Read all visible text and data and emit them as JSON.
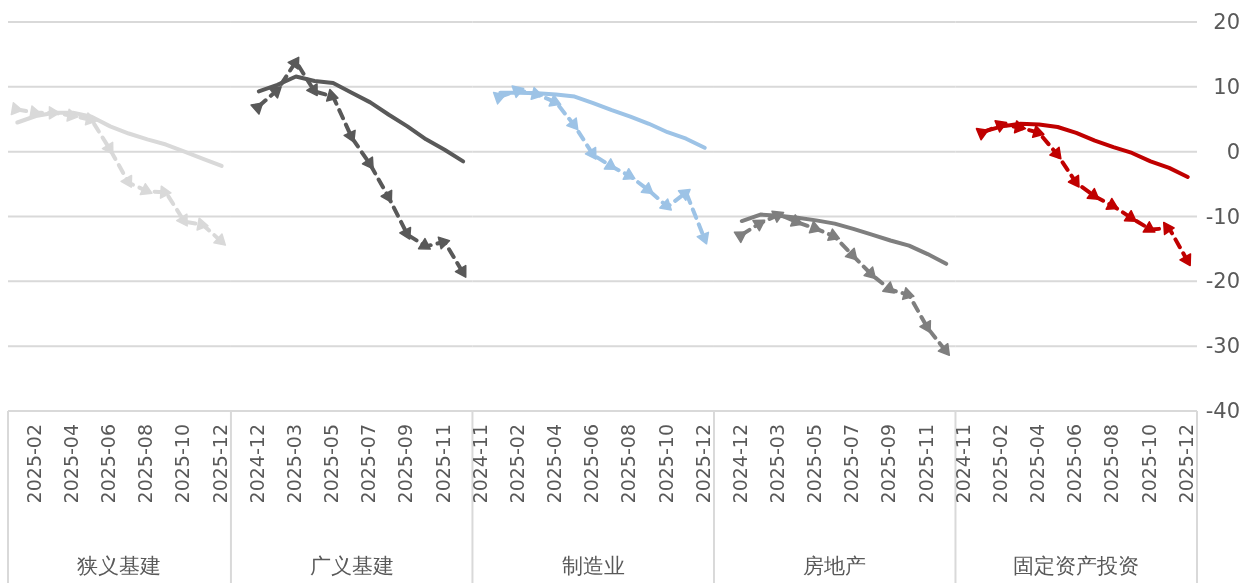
{
  "chart_data": [
    {
      "type": "line",
      "xlabel": "狭义基建",
      "categories": [
        null,
        "2025-02",
        null,
        "2025-04",
        null,
        "2025-06",
        null,
        "2025-08",
        null,
        "2025-10",
        null,
        "2025-12"
      ],
      "ylim": [
        -40,
        20
      ],
      "yticks": [
        -40,
        -30,
        -20,
        -10,
        0,
        10,
        20
      ],
      "grid": "y",
      "tick_labels": "x",
      "series": [
        {
          "color": "#d9d9d9",
          "line_style": "solid",
          "values": [
            4.5,
            5.5,
            6.0,
            6.0,
            5.4,
            3.9,
            2.8,
            1.9,
            1.1,
            0.0,
            -1.1,
            -2.2
          ]
        },
        {
          "color": "#d9d9d9",
          "line_style": "dashed",
          "marker": "triangle",
          "values": [
            6.5,
            6.0,
            6.0,
            5.5,
            4.9,
            0.3,
            -4.8,
            -6.1,
            -6.3,
            -10.8,
            -11.3,
            -13.9
          ]
        }
      ]
    },
    {
      "type": "line",
      "xlabel": "广义基建",
      "categories": [
        null,
        "2024-12",
        null,
        "2025-03",
        null,
        "2025-05",
        null,
        "2025-07",
        null,
        "2025-09",
        null,
        "2025-11",
        null
      ],
      "ylim": [
        -40,
        20
      ],
      "yticks": [
        -40,
        -30,
        -20,
        -10,
        0,
        10,
        20
      ],
      "grid": "y",
      "tick_labels": "x",
      "series": [
        {
          "color": "#595959",
          "line_style": "solid",
          "values": [
            null,
            9.3,
            10.3,
            11.6,
            10.9,
            10.6,
            9.1,
            7.6,
            5.7,
            3.9,
            1.9,
            0.3,
            -1.5
          ]
        },
        {
          "color": "#595959",
          "line_style": "dashed",
          "marker": "triangle",
          "values": [
            null,
            7.0,
            9.5,
            13.9,
            9.3,
            8.5,
            2.2,
            -2.0,
            -7.1,
            -12.8,
            -14.6,
            -13.9,
            -18.7
          ]
        }
      ]
    },
    {
      "type": "line",
      "xlabel": "制造业",
      "categories": [
        "2024-11",
        null,
        "2025-02",
        null,
        "2025-04",
        null,
        "2025-06",
        null,
        "2025-08",
        null,
        "2025-10",
        null,
        "2025-12"
      ],
      "ylim": [
        -40,
        20
      ],
      "yticks": [
        -40,
        -30,
        -20,
        -10,
        0,
        10,
        20
      ],
      "grid": "y",
      "tick_labels": "x",
      "series": [
        {
          "color": "#9dc3e6",
          "line_style": "solid",
          "values": [
            null,
            9.1,
            9.1,
            9.0,
            8.8,
            8.5,
            7.5,
            6.4,
            5.4,
            4.3,
            3.0,
            2.0,
            0.6
          ]
        },
        {
          "color": "#9dc3e6",
          "line_style": "dashed",
          "marker": "triangle",
          "values": [
            null,
            8.5,
            9.5,
            8.8,
            7.6,
            4.0,
            -0.5,
            -2.3,
            -3.8,
            -6.0,
            -8.5,
            -6.3,
            -13.5
          ]
        }
      ]
    },
    {
      "type": "line",
      "xlabel": "房地产",
      "categories": [
        null,
        "2024-12",
        null,
        "2025-03",
        null,
        "2025-05",
        null,
        "2025-07",
        null,
        "2025-09",
        null,
        "2025-11",
        null
      ],
      "ylim": [
        -40,
        20
      ],
      "yticks": [
        -40,
        -30,
        -20,
        -10,
        0,
        10,
        20
      ],
      "grid": "y",
      "tick_labels": "x",
      "series": [
        {
          "color": "#7f7f7f",
          "line_style": "solid",
          "values": [
            null,
            -10.7,
            -9.7,
            -9.9,
            -10.2,
            -10.6,
            -11.1,
            -11.9,
            -12.8,
            -13.7,
            -14.5,
            -15.8,
            -17.3
          ]
        },
        {
          "color": "#7f7f7f",
          "line_style": "dashed",
          "marker": "triangle",
          "values": [
            null,
            -12.8,
            -11.0,
            -9.7,
            -10.9,
            -11.9,
            -13.1,
            -16.1,
            -19.0,
            -21.3,
            -22.1,
            -27.2,
            -30.8
          ]
        }
      ]
    },
    {
      "type": "line",
      "xlabel": "固定资产投资",
      "categories": [
        "2024-11",
        null,
        "2025-02",
        null,
        "2025-04",
        null,
        "2025-06",
        null,
        "2025-08",
        null,
        "2025-10",
        null,
        "2025-12"
      ],
      "ylim": [
        -40,
        20
      ],
      "yticks": [
        -40,
        -30,
        -20,
        -10,
        0,
        10,
        20
      ],
      "grid": "y",
      "series": [
        {
          "color": "#c00000",
          "line_style": "solid",
          "values": [
            null,
            3.1,
            3.9,
            4.3,
            4.2,
            3.8,
            2.9,
            1.7,
            0.7,
            -0.2,
            -1.5,
            -2.5,
            -3.9
          ]
        },
        {
          "color": "#c00000",
          "line_style": "dashed",
          "marker": "triangle",
          "values": [
            null,
            3.0,
            4.2,
            3.7,
            2.9,
            -0.5,
            -4.8,
            -6.9,
            -8.4,
            -10.3,
            -12.0,
            -11.8,
            -16.9
          ]
        }
      ]
    }
  ]
}
